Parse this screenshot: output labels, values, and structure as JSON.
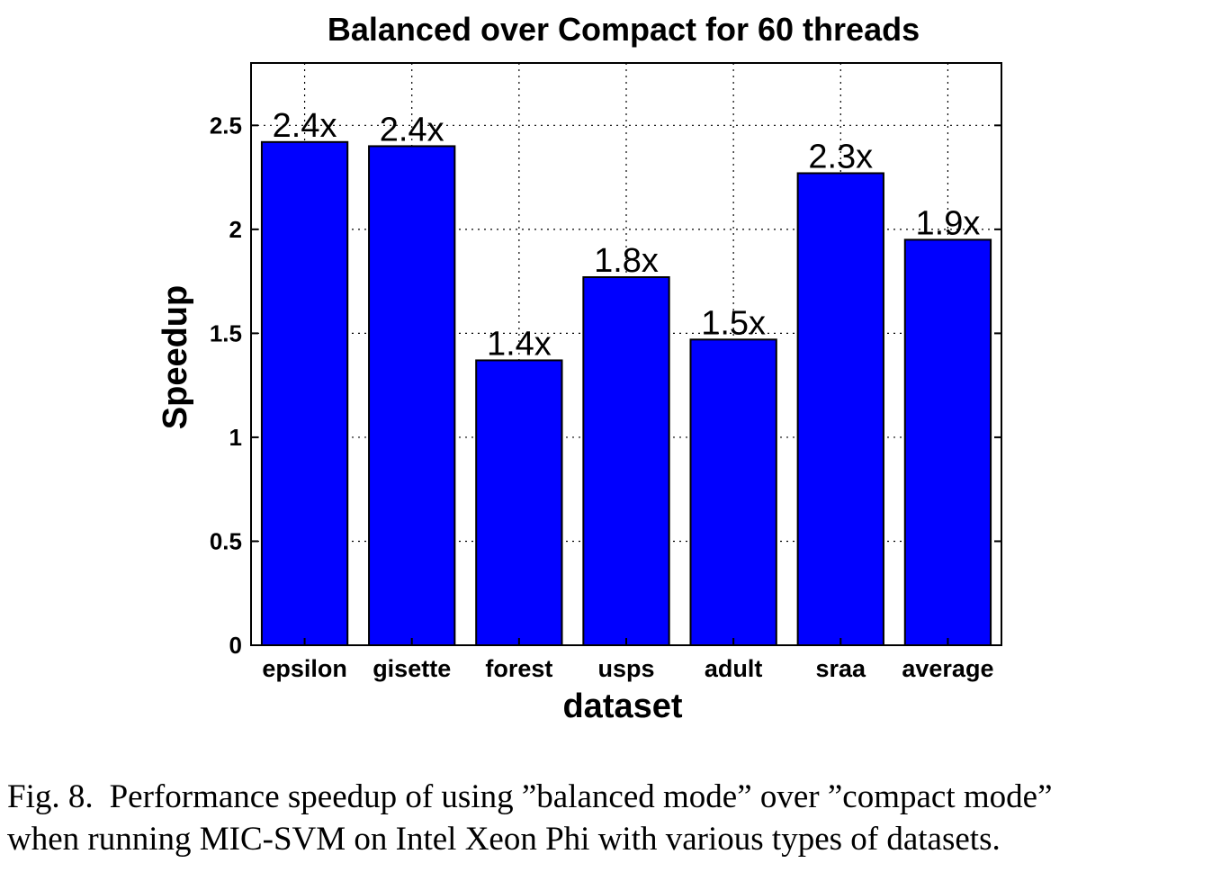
{
  "chart_data": {
    "type": "bar",
    "title": "Balanced over Compact for 60 threads",
    "xlabel": "dataset",
    "ylabel": "Speedup",
    "categories": [
      "epsilon",
      "gisette",
      "forest",
      "usps",
      "adult",
      "sraa",
      "average"
    ],
    "values": [
      2.42,
      2.4,
      1.37,
      1.77,
      1.47,
      2.27,
      1.95
    ],
    "data_labels": [
      "2.4x",
      "2.4x",
      "1.4x",
      "1.8x",
      "1.5x",
      "2.3x",
      "1.9x"
    ],
    "ylim": [
      0,
      2.8
    ],
    "yticks": [
      0,
      0.5,
      1,
      1.5,
      2,
      2.5
    ],
    "ytick_labels": [
      "0",
      "0.5",
      "1",
      "1.5",
      "2",
      "2.5"
    ],
    "grid": true,
    "bar_color": "#0000ff"
  },
  "caption": {
    "label": "Fig. 8.",
    "line1": "Performance speedup of using ”balanced mode” over ”compact mode”",
    "line2": "when running MIC-SVM on Intel Xeon Phi with various types of datasets."
  }
}
